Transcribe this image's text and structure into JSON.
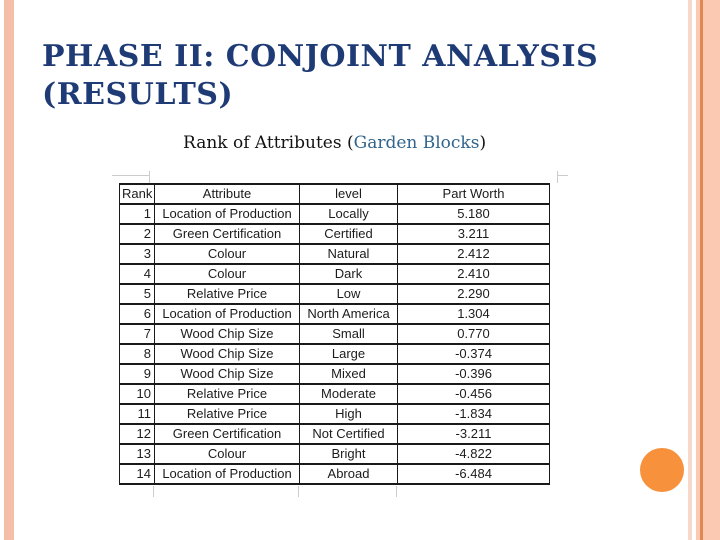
{
  "title": {
    "line1": "PHASE II: CONJOINT ANALYSIS",
    "line2": "(RESULTS)"
  },
  "subtitle": {
    "prefix": "Rank of Attributes (",
    "highlight": "Garden Blocks",
    "suffix": ")"
  },
  "table": {
    "headers": [
      "Rank",
      "Attribute",
      "level",
      "Part Worth"
    ],
    "rows": [
      [
        "1",
        "Location of Production",
        "Locally",
        "5.180"
      ],
      [
        "2",
        "Green Certification",
        "Certified",
        "3.211"
      ],
      [
        "3",
        "Colour",
        "Natural",
        "2.412"
      ],
      [
        "4",
        "Colour",
        "Dark",
        "2.410"
      ],
      [
        "5",
        "Relative Price",
        "Low",
        "2.290"
      ],
      [
        "6",
        "Location of Production",
        "North America",
        "1.304"
      ],
      [
        "7",
        "Wood Chip Size",
        "Small",
        "0.770"
      ],
      [
        "8",
        "Wood Chip Size",
        "Large",
        "-0.374"
      ],
      [
        "9",
        "Wood Chip Size",
        "Mixed",
        "-0.396"
      ],
      [
        "10",
        "Relative Price",
        "Moderate",
        "-0.456"
      ],
      [
        "11",
        "Relative Price",
        "High",
        "-1.834"
      ],
      [
        "12",
        "Green Certification",
        "Not Certified",
        "-3.211"
      ],
      [
        "13",
        "Colour",
        "Bright",
        "-4.822"
      ],
      [
        "14",
        "Location of Production",
        "Abroad",
        "-6.484"
      ]
    ]
  },
  "colors": {
    "title_navy": "#1F3B76",
    "subtitle_highlight_blue": "#31648C",
    "stripe_salmon_left": "#F5BFA7",
    "stripe_light_pink_right": "#F7D9C9",
    "stripe_salmon_right": "#FBC8B1",
    "stripe_accent_orange": "#DE8853",
    "circle_orange": "#F7913C",
    "table_border_black": "#1a1a1a",
    "gridline_gray": "#cccccc"
  }
}
